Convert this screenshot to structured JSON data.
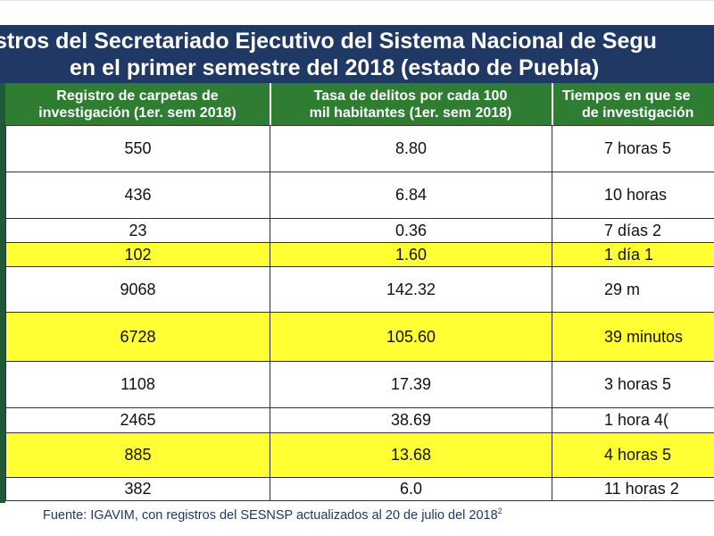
{
  "title": {
    "line1": "stros del Secretariado Ejecutivo del Sistema Nacional de Segu",
    "line2": "en el primer semestre del 2018 (estado de Puebla)"
  },
  "headers": {
    "col1": [
      "Registro de carpetas de",
      "investigación (1er. sem 2018)"
    ],
    "col2": [
      "Tasa de delitos por cada 100",
      "mil habitantes (1er. sem 2018)"
    ],
    "col3": [
      "Tiempos en que se",
      "de investigación"
    ]
  },
  "rows": [
    {
      "registro": "550",
      "tasa": "8.80",
      "tiempo": "7 horas 5",
      "highlight": false
    },
    {
      "registro": "436",
      "tasa": "6.84",
      "tiempo": "10 horas",
      "highlight": false
    },
    {
      "registro": "23",
      "tasa": "0.36",
      "tiempo": "7 días 2",
      "highlight": false
    },
    {
      "registro": "102",
      "tasa": "1.60",
      "tiempo": "1 día 1",
      "highlight": true
    },
    {
      "registro": "9068",
      "tasa": "142.32",
      "tiempo": "29 m",
      "highlight": false
    },
    {
      "registro": "6728",
      "tasa": "105.60",
      "tiempo": "39 minutos",
      "highlight": true
    },
    {
      "registro": "1108",
      "tasa": "17.39",
      "tiempo": "3 horas 5",
      "highlight": false
    },
    {
      "registro": "2465",
      "tasa": "38.69",
      "tiempo": "1 hora 4(",
      "highlight": false
    },
    {
      "registro": "885",
      "tasa": "13.68",
      "tiempo": "4 horas 5",
      "highlight": true
    },
    {
      "registro": "382",
      "tasa": "6.0",
      "tiempo": "11 horas 2",
      "highlight": false
    }
  ],
  "footer": {
    "text": "Fuente: IGAVIM, con registros del SESNSP actualizados al 20 de julio del 2018",
    "note": "2"
  },
  "colors": {
    "title_bg": "#1f3864",
    "header_bg": "#2e7d32",
    "highlight": "#ffff33"
  }
}
